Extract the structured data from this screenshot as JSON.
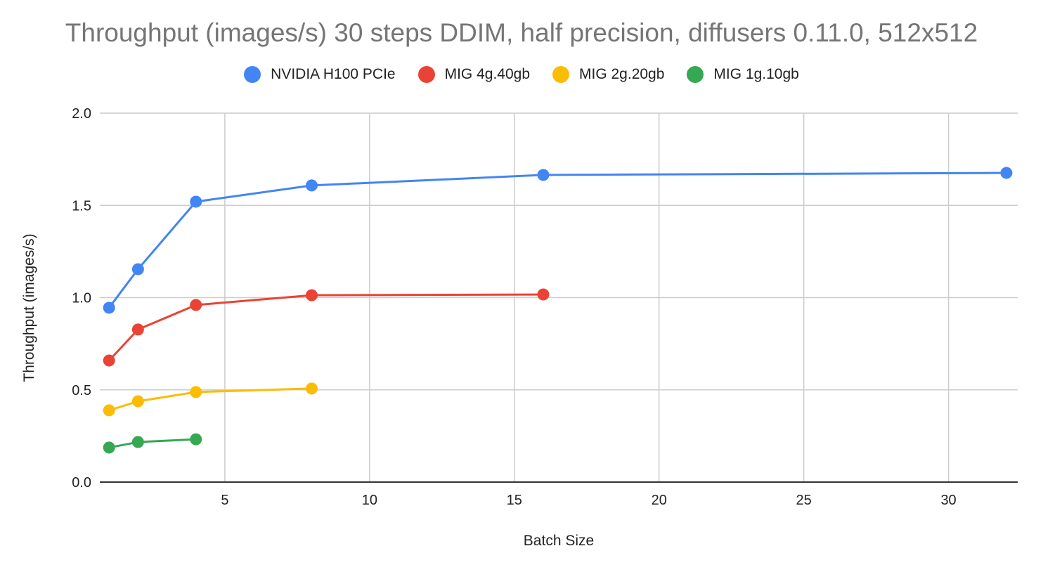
{
  "chart_data": {
    "type": "line",
    "title": "Throughput (images/s) 30 steps DDIM, half precision, diffusers 0.11.0, 512x512",
    "xlabel": "Batch Size",
    "ylabel": "Throughput (images/s)",
    "xlim": [
      0.68,
      32.39
    ],
    "ylim": [
      0,
      2.0
    ],
    "x_ticks": [
      5,
      10,
      15,
      20,
      25,
      30
    ],
    "x_tick_labels": [
      "5",
      "10",
      "15",
      "20",
      "25",
      "30"
    ],
    "y_ticks": [
      0,
      0.5,
      1.0,
      1.5,
      2.0
    ],
    "y_tick_labels": [
      "0.0",
      "0.5",
      "1.0",
      "1.5",
      "2.0"
    ],
    "grid": true,
    "legend_position": "top",
    "series": [
      {
        "name": "NVIDIA H100 PCIe",
        "color": "#4285f4",
        "x": [
          1,
          2,
          4,
          8,
          16,
          32
        ],
        "values": [
          0.945,
          1.154,
          1.52,
          1.608,
          1.665,
          1.676
        ]
      },
      {
        "name": "MIG 4g.40gb",
        "color": "#ea4335",
        "x": [
          1,
          2,
          4,
          8,
          16
        ],
        "values": [
          0.659,
          0.827,
          0.96,
          1.013,
          1.017
        ]
      },
      {
        "name": "MIG 2g.20gb",
        "color": "#fbbc04",
        "x": [
          1,
          2,
          4,
          8
        ],
        "values": [
          0.389,
          0.438,
          0.488,
          0.507
        ]
      },
      {
        "name": "MIG 1g.10gb",
        "color": "#34a853",
        "x": [
          1,
          2,
          4
        ],
        "values": [
          0.187,
          0.217,
          0.232
        ]
      }
    ]
  }
}
